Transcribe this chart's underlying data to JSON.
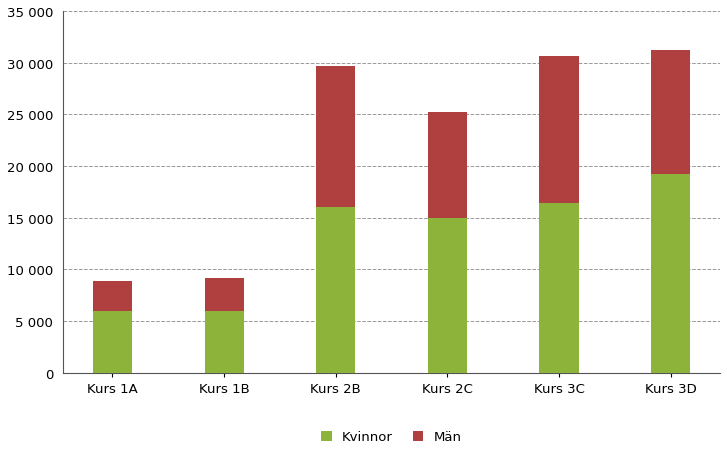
{
  "categories": [
    "Kurs 1A",
    "Kurs 1B",
    "Kurs 2B",
    "Kurs 2C",
    "Kurs 3C",
    "Kurs 3D"
  ],
  "kvinnor": [
    6000,
    6000,
    16000,
    15000,
    16400,
    19200
  ],
  "man": [
    2900,
    3200,
    13700,
    10200,
    14200,
    12000
  ],
  "color_kvinnor": "#8DB33A",
  "color_man": "#B04040",
  "ylim": [
    0,
    35000
  ],
  "yticks": [
    0,
    5000,
    10000,
    15000,
    20000,
    25000,
    30000,
    35000
  ],
  "legend_labels": [
    "Kvinnor",
    "Män"
  ],
  "background_color": "#ffffff",
  "plot_bg_color": "#f5f5f5",
  "grid_color": "#999999"
}
